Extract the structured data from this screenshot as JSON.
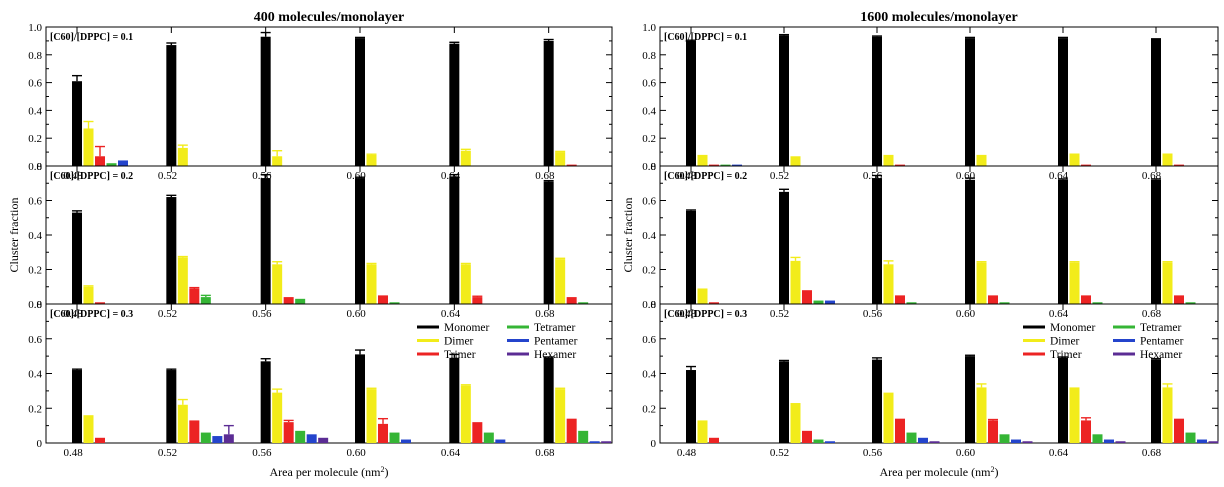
{
  "colors": {
    "Monomer": "#000000",
    "Dimer": "#f2ec1a",
    "Trimer": "#ec2323",
    "Tetramer": "#35b535",
    "Pentamer": "#2444cc",
    "Hexamer": "#5b2c94"
  },
  "chart_data": [
    {
      "type": "bar",
      "title": "400 molecules/monolayer",
      "xlabel": "Area per molecule (nm²)",
      "ylabel": "Cluster fraction",
      "categories": [
        "0.48",
        "0.52",
        "0.56",
        "0.60",
        "0.64",
        "0.68"
      ],
      "legend": {
        "position": "bottom-panel-top-right",
        "entries": [
          "Monomer",
          "Dimer",
          "Trimer",
          "Tetramer",
          "Pentamer",
          "Hexamer"
        ]
      },
      "panels": [
        {
          "annotation": "[C60]/[DPPC] = 0.1",
          "ylim": [
            0,
            1.0
          ],
          "yticks": [
            "0",
            "0.2",
            "0.4",
            "0.6",
            "0.8",
            "1.0"
          ],
          "series": [
            {
              "name": "Monomer",
              "values": [
                0.61,
                0.87,
                0.93,
                0.92,
                0.88,
                0.9
              ],
              "errors": [
                0.04,
                0.015,
                0.03,
                0.005,
                0.01,
                0.01
              ]
            },
            {
              "name": "Dimer",
              "values": [
                0.27,
                0.13,
                0.07,
                0.08,
                0.11,
                0.1
              ],
              "errors": [
                0.05,
                0.02,
                0.04,
                0.005,
                0.01,
                0.005
              ]
            },
            {
              "name": "Trimer",
              "values": [
                0.07,
                0.0,
                0.0,
                0.0,
                0.0,
                0.01
              ],
              "errors": [
                0.07,
                0,
                0,
                0,
                0,
                0
              ]
            },
            {
              "name": "Tetramer",
              "values": [
                0.02,
                0.0,
                0.0,
                0.0,
                0.0,
                0.0
              ],
              "errors": [
                0,
                0,
                0,
                0,
                0,
                0
              ]
            },
            {
              "name": "Pentamer",
              "values": [
                0.04,
                0.0,
                0.0,
                0.0,
                0.0,
                0.0
              ],
              "errors": [
                0,
                0,
                0,
                0,
                0,
                0
              ]
            },
            {
              "name": "Hexamer",
              "values": [
                0.0,
                0.0,
                0.0,
                0.0,
                0.0,
                0.0
              ],
              "errors": [
                0,
                0,
                0,
                0,
                0,
                0
              ]
            }
          ]
        },
        {
          "annotation": "[C60]/[DPPC] = 0.2",
          "ylim": [
            0,
            0.8
          ],
          "yticks": [
            "0",
            "0.2",
            "0.4",
            "0.6",
            "0.8"
          ],
          "series": [
            {
              "name": "Monomer",
              "values": [
                0.53,
                0.62,
                0.73,
                0.73,
                0.74,
                0.71
              ],
              "errors": [
                0.01,
                0.01,
                0.02,
                0.005,
                0.01,
                0.005
              ]
            },
            {
              "name": "Dimer",
              "values": [
                0.1,
                0.27,
                0.23,
                0.23,
                0.23,
                0.26
              ],
              "errors": [
                0.005,
                0.005,
                0.015,
                0.005,
                0.005,
                0.005
              ]
            },
            {
              "name": "Trimer",
              "values": [
                0.01,
                0.09,
                0.04,
                0.05,
                0.04,
                0.04
              ],
              "errors": [
                0,
                0.005,
                0,
                0,
                0.005,
                0
              ]
            },
            {
              "name": "Tetramer",
              "values": [
                0.0,
                0.04,
                0.03,
                0.01,
                0.0,
                0.01
              ],
              "errors": [
                0,
                0.01,
                0,
                0,
                0,
                0
              ]
            },
            {
              "name": "Pentamer",
              "values": [
                0.0,
                0.0,
                0.0,
                0.0,
                0.0,
                0.0
              ],
              "errors": [
                0,
                0,
                0,
                0,
                0,
                0
              ]
            },
            {
              "name": "Hexamer",
              "values": [
                0.0,
                0.0,
                0.0,
                0.0,
                0.0,
                0.0
              ],
              "errors": [
                0,
                0,
                0,
                0,
                0,
                0
              ]
            }
          ]
        },
        {
          "annotation": "[C60]/[DPPC] = 0.3",
          "ylim": [
            0,
            0.8
          ],
          "yticks": [
            "0",
            "0.2",
            "0.4",
            "0.6",
            "0.8"
          ],
          "series": [
            {
              "name": "Monomer",
              "values": [
                0.42,
                0.42,
                0.47,
                0.51,
                0.49,
                0.49
              ],
              "errors": [
                0.005,
                0.005,
                0.015,
                0.025,
                0.02,
                0.005
              ]
            },
            {
              "name": "Dimer",
              "values": [
                0.16,
                0.22,
                0.29,
                0.31,
                0.33,
                0.31
              ],
              "errors": [
                0,
                0.03,
                0.02,
                0.005,
                0.005,
                0.005
              ]
            },
            {
              "name": "Trimer",
              "values": [
                0.03,
                0.13,
                0.12,
                0.11,
                0.12,
                0.14
              ],
              "errors": [
                0,
                0,
                0.01,
                0.03,
                0,
                0
              ]
            },
            {
              "name": "Tetramer",
              "values": [
                0.0,
                0.06,
                0.07,
                0.06,
                0.06,
                0.07
              ],
              "errors": [
                0,
                0,
                0,
                0,
                0,
                0
              ]
            },
            {
              "name": "Pentamer",
              "values": [
                0.0,
                0.04,
                0.05,
                0.02,
                0.02,
                0.01
              ],
              "errors": [
                0,
                0,
                0,
                0,
                0,
                0
              ]
            },
            {
              "name": "Hexamer",
              "values": [
                0.0,
                0.05,
                0.03,
                0.0,
                0.0,
                0.01
              ],
              "errors": [
                0,
                0.05,
                0,
                0,
                0,
                0
              ]
            }
          ]
        }
      ]
    },
    {
      "type": "bar",
      "title": "1600 molecules/monolayer",
      "xlabel": "Area per molecule (nm²)",
      "ylabel": "Cluster fraction",
      "categories": [
        "0.48",
        "0.52",
        "0.56",
        "0.60",
        "0.64",
        "0.68"
      ],
      "legend": {
        "position": "bottom-panel-top-right",
        "entries": [
          "Monomer",
          "Dimer",
          "Trimer",
          "Tetramer",
          "Pentamer",
          "Hexamer"
        ]
      },
      "panels": [
        {
          "annotation": "[C60]/[DPPC] = 0.1",
          "ylim": [
            0,
            1.0
          ],
          "yticks": [
            "0",
            "0.2",
            "0.4",
            "0.6",
            "0.8",
            "1.0"
          ],
          "series": [
            {
              "name": "Monomer",
              "values": [
                0.9,
                0.94,
                0.93,
                0.92,
                0.92,
                0.91
              ],
              "errors": [
                0.005,
                0.005,
                0.005,
                0.005,
                0.005,
                0.005
              ]
            },
            {
              "name": "Dimer",
              "values": [
                0.08,
                0.07,
                0.08,
                0.08,
                0.09,
                0.09
              ],
              "errors": [
                0,
                0,
                0,
                0,
                0,
                0
              ]
            },
            {
              "name": "Trimer",
              "values": [
                0.01,
                0.0,
                0.01,
                0.0,
                0.01,
                0.01
              ],
              "errors": [
                0,
                0,
                0,
                0,
                0,
                0
              ]
            },
            {
              "name": "Tetramer",
              "values": [
                0.01,
                0.0,
                0.0,
                0.0,
                0.0,
                0.0
              ],
              "errors": [
                0,
                0,
                0,
                0,
                0,
                0
              ]
            },
            {
              "name": "Pentamer",
              "values": [
                0.01,
                0.0,
                0.0,
                0.0,
                0.0,
                0.0
              ],
              "errors": [
                0,
                0,
                0,
                0,
                0,
                0
              ]
            },
            {
              "name": "Hexamer",
              "values": [
                0.0,
                0.0,
                0.0,
                0.0,
                0.0,
                0.0
              ],
              "errors": [
                0,
                0,
                0,
                0,
                0,
                0
              ]
            }
          ]
        },
        {
          "annotation": "[C60]/[DPPC] = 0.2",
          "ylim": [
            0,
            0.8
          ],
          "yticks": [
            "0",
            "0.2",
            "0.4",
            "0.6",
            "0.8"
          ],
          "series": [
            {
              "name": "Monomer",
              "values": [
                0.54,
                0.65,
                0.73,
                0.72,
                0.72,
                0.72
              ],
              "errors": [
                0.005,
                0.015,
                0.015,
                0.01,
                0.005,
                0.005
              ]
            },
            {
              "name": "Dimer",
              "values": [
                0.09,
                0.25,
                0.23,
                0.24,
                0.24,
                0.24
              ],
              "errors": [
                0,
                0.02,
                0.02,
                0.005,
                0.005,
                0.005
              ]
            },
            {
              "name": "Trimer",
              "values": [
                0.01,
                0.08,
                0.05,
                0.05,
                0.05,
                0.05
              ],
              "errors": [
                0,
                0,
                0,
                0,
                0,
                0
              ]
            },
            {
              "name": "Tetramer",
              "values": [
                0.0,
                0.02,
                0.01,
                0.01,
                0.01,
                0.01
              ],
              "errors": [
                0,
                0,
                0,
                0,
                0,
                0
              ]
            },
            {
              "name": "Pentamer",
              "values": [
                0.0,
                0.02,
                0.0,
                0.0,
                0.0,
                0.0
              ],
              "errors": [
                0,
                0,
                0,
                0,
                0,
                0
              ]
            },
            {
              "name": "Hexamer",
              "values": [
                0.0,
                0.0,
                0.0,
                0.0,
                0.0,
                0.0
              ],
              "errors": [
                0,
                0,
                0,
                0,
                0,
                0
              ]
            }
          ]
        },
        {
          "annotation": "[C60]/[DPPC] = 0.3",
          "ylim": [
            0,
            0.8
          ],
          "yticks": [
            "0",
            "0.2",
            "0.4",
            "0.6",
            "0.8"
          ],
          "series": [
            {
              "name": "Monomer",
              "values": [
                0.42,
                0.47,
                0.48,
                0.5,
                0.49,
                0.48
              ],
              "errors": [
                0.02,
                0.005,
                0.01,
                0.005,
                0.005,
                0.005
              ]
            },
            {
              "name": "Dimer",
              "values": [
                0.13,
                0.23,
                0.29,
                0.32,
                0.32,
                0.32
              ],
              "errors": [
                0,
                0,
                0,
                0.02,
                0,
                0.02
              ]
            },
            {
              "name": "Trimer",
              "values": [
                0.03,
                0.07,
                0.14,
                0.13,
                0.13,
                0.14
              ],
              "errors": [
                0,
                0,
                0,
                0.005,
                0.015,
                0
              ]
            },
            {
              "name": "Tetramer",
              "values": [
                0.0,
                0.02,
                0.06,
                0.05,
                0.05,
                0.06
              ],
              "errors": [
                0,
                0,
                0,
                0,
                0,
                0
              ]
            },
            {
              "name": "Pentamer",
              "values": [
                0.0,
                0.01,
                0.03,
                0.02,
                0.02,
                0.02
              ],
              "errors": [
                0,
                0,
                0,
                0,
                0,
                0
              ]
            },
            {
              "name": "Hexamer",
              "values": [
                0.0,
                0.0,
                0.01,
                0.01,
                0.01,
                0.01
              ],
              "errors": [
                0,
                0,
                0,
                0,
                0,
                0
              ]
            }
          ]
        }
      ]
    }
  ]
}
